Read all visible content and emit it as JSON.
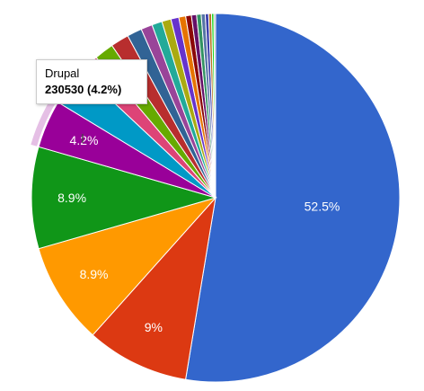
{
  "chart_data": {
    "type": "pie",
    "start_angle_deg": 0,
    "direction": "clockwise",
    "slices": [
      {
        "percent": 52.5,
        "label": "52.5%",
        "color": "#3366cc"
      },
      {
        "percent": 9.0,
        "label": "9%",
        "color": "#dc3912"
      },
      {
        "percent": 8.9,
        "label": "8.9%",
        "color": "#ff9900"
      },
      {
        "percent": 8.9,
        "label": "8.9%",
        "color": "#109618"
      },
      {
        "percent": 4.2,
        "label": "4.2%",
        "color": "#990099",
        "name": "Drupal",
        "value": 230530,
        "highlighted": true
      },
      {
        "percent": 3.3,
        "label": "",
        "color": "#0099c6"
      },
      {
        "percent": 1.8,
        "label": "",
        "color": "#dd4477"
      },
      {
        "percent": 1.7,
        "label": "",
        "color": "#66aa00"
      },
      {
        "percent": 1.6,
        "label": "",
        "color": "#b82e2e"
      },
      {
        "percent": 1.3,
        "label": "",
        "color": "#316395"
      },
      {
        "percent": 1.0,
        "label": "",
        "color": "#994499"
      },
      {
        "percent": 0.9,
        "label": "",
        "color": "#22aa99"
      },
      {
        "percent": 0.8,
        "label": "",
        "color": "#aaaa11"
      },
      {
        "percent": 0.7,
        "label": "",
        "color": "#6633cc"
      },
      {
        "percent": 0.6,
        "label": "",
        "color": "#e67300"
      },
      {
        "percent": 0.5,
        "label": "",
        "color": "#8b0707"
      },
      {
        "percent": 0.45,
        "label": "",
        "color": "#651067"
      },
      {
        "percent": 0.4,
        "label": "",
        "color": "#329262"
      },
      {
        "percent": 0.35,
        "label": "",
        "color": "#5574a6"
      },
      {
        "percent": 0.3,
        "label": "",
        "color": "#3b3eac"
      },
      {
        "percent": 0.25,
        "label": "",
        "color": "#b77322"
      },
      {
        "percent": 0.2,
        "label": "",
        "color": "#16d620"
      },
      {
        "percent": 0.15,
        "label": "",
        "color": "#aaaaaa"
      }
    ],
    "tooltip": {
      "name": "Drupal",
      "value_text": "230530 (4.2%)"
    }
  }
}
